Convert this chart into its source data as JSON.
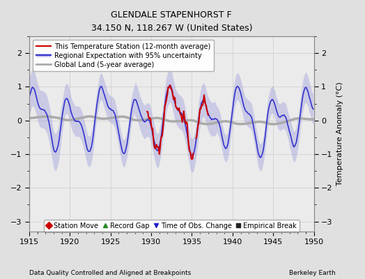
{
  "title": "GLENDALE STAPENHORST F",
  "subtitle": "34.150 N, 118.267 W (United States)",
  "xlabel_left": "Data Quality Controlled and Aligned at Breakpoints",
  "xlabel_right": "Berkeley Earth",
  "ylabel": "Temperature Anomaly (°C)",
  "xlim": [
    1915,
    1950
  ],
  "ylim": [
    -3.3,
    2.5
  ],
  "yticks": [
    -3,
    -2,
    -1,
    0,
    1,
    2
  ],
  "xticks": [
    1915,
    1920,
    1925,
    1930,
    1935,
    1940,
    1945,
    1950
  ],
  "bg_color": "#e0e0e0",
  "plot_bg_color": "#ebebeb",
  "regional_color": "#3333cc",
  "station_color": "#cc0000",
  "global_color": "#aaaaaa",
  "fill_color": "#9999dd",
  "fill_alpha": 0.4,
  "legend_items": [
    {
      "label": "This Temperature Station (12-month average)",
      "color": "#cc0000",
      "lw": 1.5
    },
    {
      "label": "Regional Expectation with 95% uncertainty",
      "color": "#3333cc",
      "lw": 1.5
    },
    {
      "label": "Global Land (5-year average)",
      "color": "#aaaaaa",
      "lw": 2.0
    }
  ],
  "marker_legend": [
    {
      "marker": "D",
      "color": "#cc0000",
      "label": "Station Move"
    },
    {
      "marker": "^",
      "color": "#228822",
      "label": "Record Gap"
    },
    {
      "marker": "v",
      "color": "#2222cc",
      "label": "Time of Obs. Change"
    },
    {
      "marker": "s",
      "color": "#222222",
      "label": "Empirical Break"
    }
  ],
  "seed": 42
}
